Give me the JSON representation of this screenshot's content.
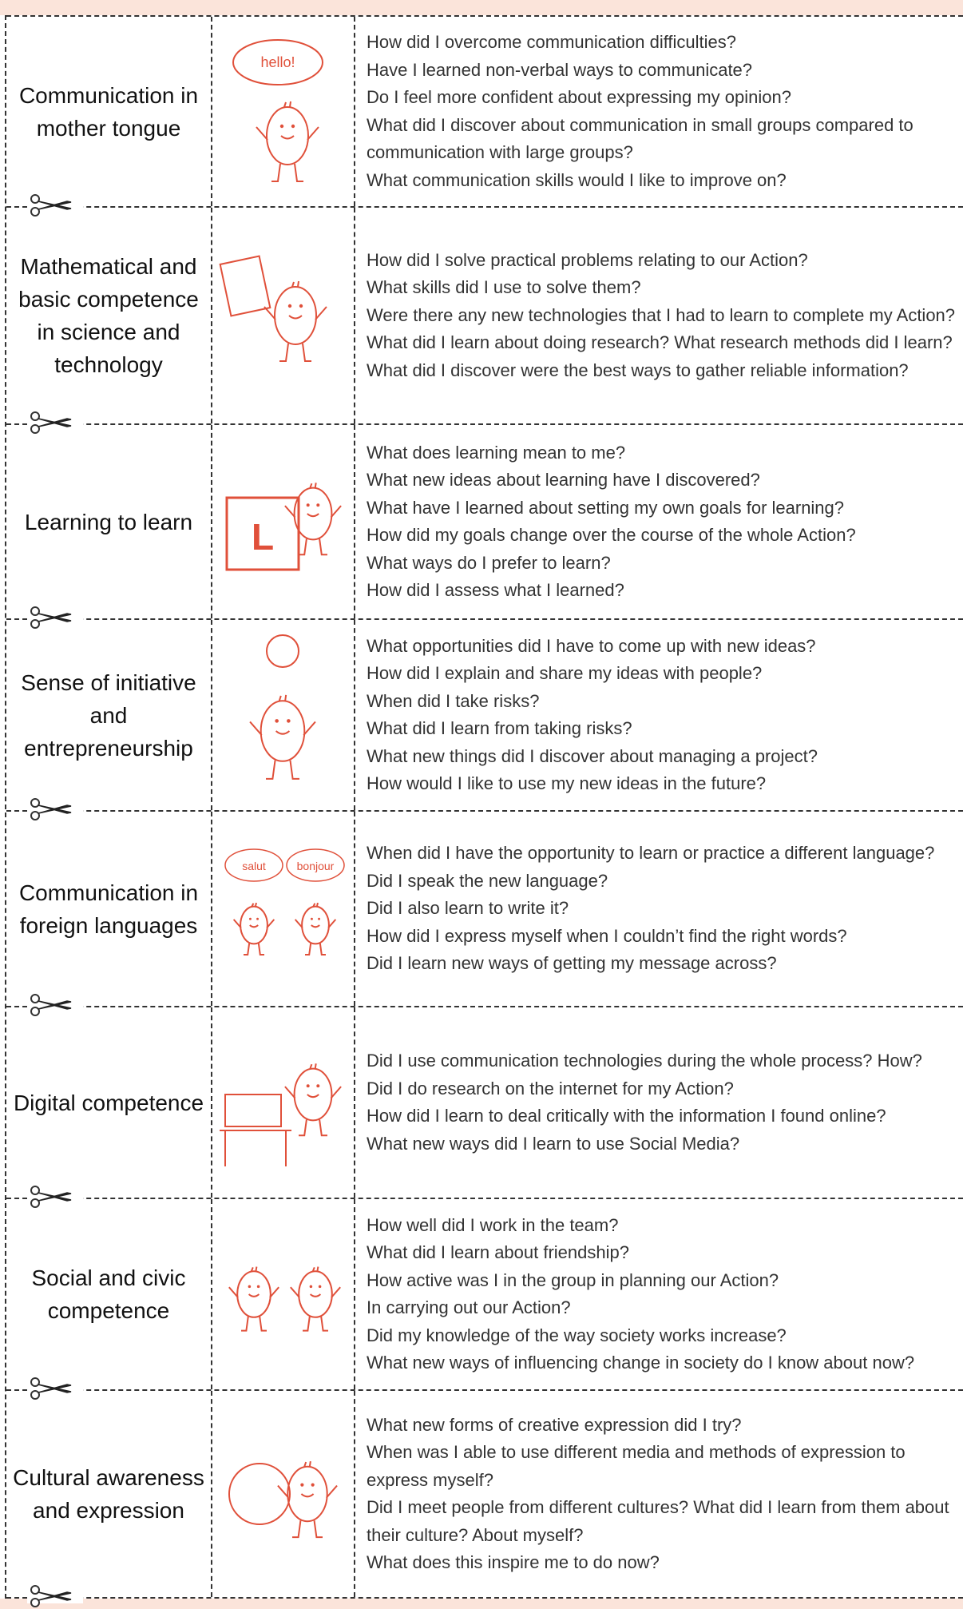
{
  "table": {
    "rows": [
      {
        "label": "Communication in mother tongue",
        "bubbles": [
          "hello!"
        ],
        "questions": [
          "How did I overcome communication difficulties?",
          "Have I learned non-verbal ways to communicate?",
          "Do I feel more confident about expressing my opinion?",
          "What did I discover about communication in small groups compared to communication with large groups?",
          "What communication skills would I like to improve on?"
        ]
      },
      {
        "label": "Mathematical and basic competence in science and technology",
        "bubbles": [],
        "questions": [
          "How did I solve practical problems relating to our Action?",
          "What skills did I use to solve them?",
          "Were there any new technologies that I had to learn to complete my Action?",
          "What did I learn about doing research? What research methods did I learn?",
          "What did  I discover were the best ways to gather reliable information?"
        ]
      },
      {
        "label": "Learning to learn",
        "bubbles": [
          "L"
        ],
        "questions": [
          "What does learning mean to me?",
          "What new ideas about learning have I discovered?",
          "What have I learned about setting my own goals for learning?",
          "How did my goals change over the course of the whole Action?",
          "What ways do I prefer to learn?",
          "How did I assess what I learned?"
        ]
      },
      {
        "label": "Sense of initiative and entrepreneurship",
        "bubbles": [],
        "questions": [
          "What opportunities did I have to come up with new ideas?",
          "How did I explain and share my ideas with people?",
          "When did I take risks?",
          "What did I learn from taking risks?",
          "What new things did I discover about managing a project?",
          "How would I like to use my new ideas in the future?"
        ]
      },
      {
        "label": "Communication in foreign languages",
        "bubbles": [
          "salut",
          "bonjour"
        ],
        "questions": [
          "When did I have the opportunity to learn or practice a different language?",
          "Did I speak the new language?",
          "Did I also learn to write it?",
          "How did I express myself when I couldn’t find the right words?",
          "Did I learn new ways of getting my message across?"
        ]
      },
      {
        "label": "Digital competence",
        "bubbles": [],
        "questions": [
          "Did I use communication technologies during the whole process? How?",
          "Did I do research on the internet for my Action?",
          "How did I learn to deal critically with the information I found online?",
          "What new ways did I learn to use Social Media?"
        ]
      },
      {
        "label": "Social and civic competence",
        "bubbles": [],
        "questions": [
          "How well did I work in the team?",
          "What did I learn about friendship?",
          "How active was I in the group in planning our Action?",
          "In carrying out our Action?",
          "Did my knowledge of the way society works increase?",
          "What new ways of influencing change in society do I know about now?"
        ]
      },
      {
        "label": "Cultural awareness and expression",
        "bubbles": [],
        "questions": [
          "What new forms of creative expression did I try?",
          "When was I able to use different media and methods of expression to express myself?",
          "Did I meet people from different cultures? What did I learn from them about their culture? About myself?",
          "What does this inspire me to do now?"
        ]
      }
    ]
  }
}
